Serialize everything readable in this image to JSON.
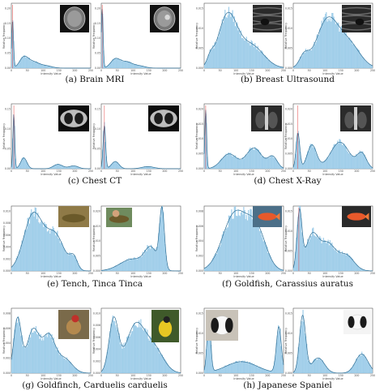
{
  "figure": {
    "panels": [
      {
        "caption": "(a) Brain MRI",
        "thumb_kind": "mri"
      },
      {
        "caption": "(b) Breast Ultrasound",
        "thumb_kind": "ultrasound"
      },
      {
        "caption": "(c) Chest CT",
        "thumb_kind": "ct"
      },
      {
        "caption": "(d) Chest X-Ray",
        "thumb_kind": "xray"
      },
      {
        "caption": "(e) Tench, Tinca Tinca",
        "thumb_kind": "tench"
      },
      {
        "caption": "(f) Goldfish, Carassius auratus",
        "thumb_kind": "goldfish"
      },
      {
        "caption": "(g) Goldfinch, Carduelis carduelis",
        "thumb_kind": "goldfinch"
      },
      {
        "caption": "(h) Japanese Spaniel",
        "thumb_kind": "spaniel"
      }
    ],
    "colors": {
      "bar_fill": "#a9d3ec",
      "bar_edge": "#6fb3dc",
      "kde_line": "#2f6f96",
      "mean_line": "#e3413f",
      "frame": "#555555"
    }
  },
  "chart_data": [
    {
      "type": "bar",
      "panel": "a-left",
      "ylabel": "Relative Frequency",
      "xlabel": "Intensity Value",
      "x_ticks": [
        "0",
        "50",
        "100",
        "150",
        "200",
        "250"
      ],
      "y_ticks": [
        "0.00",
        "0.05",
        "0.10",
        "0.15",
        "0.20"
      ],
      "xlim": [
        0,
        255
      ],
      "ylim": [
        0,
        0.22
      ],
      "peaks": [
        [
          4,
          0.16,
          3
        ],
        [
          40,
          0.035,
          14
        ],
        [
          70,
          0.02,
          18
        ],
        [
          110,
          0.008,
          20
        ]
      ],
      "mean": 4
    },
    {
      "type": "bar",
      "panel": "a-right",
      "ylabel": "Relative Frequency",
      "xlabel": "Intensity Value",
      "x_ticks": [
        "0",
        "50",
        "100",
        "150",
        "200",
        "250"
      ],
      "y_ticks": [
        "0.00",
        "0.05",
        "0.10",
        "0.15",
        "0.20"
      ],
      "xlim": [
        0,
        255
      ],
      "ylim": [
        0,
        0.22
      ],
      "peaks": [
        [
          3,
          0.2,
          3
        ],
        [
          45,
          0.03,
          15
        ],
        [
          80,
          0.02,
          18
        ],
        [
          120,
          0.008,
          20
        ]
      ],
      "mean": 3
    },
    {
      "type": "bar",
      "panel": "b-left",
      "ylabel": "Relative Frequency",
      "xlabel": "Intensity Value",
      "x_ticks": [
        "0",
        "50",
        "100",
        "150",
        "200",
        "250"
      ],
      "y_ticks": [
        "0.000",
        "0.005",
        "0.010",
        "0.015"
      ],
      "xlim": [
        0,
        255
      ],
      "ylim": [
        0,
        0.017
      ],
      "peaks": [
        [
          75,
          0.0135,
          30
        ],
        [
          150,
          0.006,
          40
        ],
        [
          20,
          0.002,
          10
        ]
      ],
      "mean": 0
    },
    {
      "type": "bar",
      "panel": "b-right",
      "ylabel": "Relative Frequency",
      "xlabel": "Intensity Value",
      "x_ticks": [
        "0",
        "50",
        "100",
        "150",
        "200",
        "250"
      ],
      "y_ticks": [
        "0.000",
        "0.005",
        "0.010",
        "0.015"
      ],
      "xlim": [
        0,
        255
      ],
      "ylim": [
        0,
        0.017
      ],
      "peaks": [
        [
          110,
          0.0125,
          35
        ],
        [
          180,
          0.006,
          35
        ],
        [
          35,
          0.003,
          15
        ]
      ],
      "mean": 0
    },
    {
      "type": "bar",
      "panel": "c-left",
      "ylabel": "Relative Frequency",
      "xlabel": "Intensity Value",
      "x_ticks": [
        "0",
        "50",
        "100",
        "150",
        "200",
        "250"
      ],
      "y_ticks": [
        "0.00",
        "0.05",
        "0.10",
        "0.15"
      ],
      "xlim": [
        0,
        255
      ],
      "ylim": [
        0,
        0.18
      ],
      "peaks": [
        [
          8,
          0.15,
          3
        ],
        [
          40,
          0.03,
          10
        ],
        [
          150,
          0.012,
          15
        ],
        [
          200,
          0.008,
          15
        ]
      ],
      "mean": 8
    },
    {
      "type": "bar",
      "panel": "c-right",
      "ylabel": "Relative Frequency",
      "xlabel": "Intensity Value",
      "x_ticks": [
        "0",
        "50",
        "100",
        "150",
        "200",
        "250"
      ],
      "y_ticks": [
        "0.00",
        "0.05",
        "0.10",
        "0.15"
      ],
      "xlim": [
        0,
        255
      ],
      "ylim": [
        0,
        0.18
      ],
      "peaks": [
        [
          10,
          0.12,
          4
        ],
        [
          45,
          0.02,
          12
        ],
        [
          150,
          0.006,
          20
        ]
      ],
      "mean": 10
    },
    {
      "type": "bar",
      "panel": "d-left",
      "ylabel": "Relative Frequency",
      "xlabel": "Intensity Value",
      "x_ticks": [
        "0",
        "50",
        "100",
        "150",
        "200",
        "250"
      ],
      "y_ticks": [
        "0.000",
        "0.005",
        "0.010",
        "0.015",
        "0.020"
      ],
      "xlim": [
        0,
        255
      ],
      "ylim": [
        0,
        0.022
      ],
      "peaks": [
        [
          5,
          0.02,
          3
        ],
        [
          80,
          0.005,
          25
        ],
        [
          160,
          0.007,
          25
        ],
        [
          220,
          0.004,
          15
        ]
      ],
      "mean": 5
    },
    {
      "type": "bar",
      "panel": "d-right",
      "ylabel": "Relative Frequency",
      "xlabel": "Intensity Value",
      "x_ticks": [
        "0",
        "50",
        "100",
        "150",
        "200",
        "250"
      ],
      "y_ticks": [
        "0.000",
        "0.005",
        "0.010",
        "0.015",
        "0.020"
      ],
      "xlim": [
        0,
        255
      ],
      "ylim": [
        0,
        0.022
      ],
      "peaks": [
        [
          15,
          0.012,
          6
        ],
        [
          60,
          0.008,
          15
        ],
        [
          150,
          0.009,
          30
        ],
        [
          220,
          0.005,
          15
        ]
      ],
      "mean": 15
    },
    {
      "type": "bar",
      "panel": "e-left",
      "ylabel": "Relative Frequency",
      "xlabel": "Intensity Value",
      "x_ticks": [
        "0",
        "50",
        "100",
        "150",
        "200",
        "250"
      ],
      "y_ticks": [
        "0.000",
        "0.002",
        "0.004",
        "0.006",
        "0.008",
        "0.010"
      ],
      "xlim": [
        0,
        255
      ],
      "ylim": [
        0,
        0.011
      ],
      "peaks": [
        [
          70,
          0.0095,
          30
        ],
        [
          140,
          0.006,
          30
        ],
        [
          200,
          0.002,
          12
        ]
      ],
      "mean": 0
    },
    {
      "type": "bar",
      "panel": "e-right",
      "ylabel": "Relative Frequency",
      "xlabel": "Intensity Value",
      "x_ticks": [
        "0",
        "50",
        "100",
        "150",
        "200",
        "250"
      ],
      "y_ticks": [
        "0.000",
        "0.005",
        "0.010",
        "0.015",
        "0.020"
      ],
      "xlim": [
        0,
        255
      ],
      "ylim": [
        0,
        0.022
      ],
      "peaks": [
        [
          195,
          0.02,
          8
        ],
        [
          160,
          0.007,
          20
        ],
        [
          100,
          0.004,
          40
        ]
      ],
      "mean": 0
    },
    {
      "type": "bar",
      "panel": "f-left",
      "ylabel": "Relative Frequency",
      "xlabel": "Intensity Value",
      "x_ticks": [
        "0",
        "50",
        "100",
        "150",
        "200",
        "250"
      ],
      "y_ticks": [
        "0.000",
        "0.002",
        "0.004",
        "0.006",
        "0.008"
      ],
      "xlim": [
        0,
        255
      ],
      "ylim": [
        0,
        0.009
      ],
      "peaks": [
        [
          100,
          0.008,
          40
        ],
        [
          170,
          0.005,
          30
        ]
      ],
      "mean": 0
    },
    {
      "type": "bar",
      "panel": "f-right",
      "ylabel": "Relative Frequency",
      "xlabel": "Intensity Value",
      "x_ticks": [
        "0",
        "50",
        "100",
        "150",
        "200",
        "250"
      ],
      "y_ticks": [
        "0.000",
        "0.005",
        "0.010",
        "0.015"
      ],
      "xlim": [
        0,
        255
      ],
      "ylim": [
        0,
        0.017
      ],
      "peaks": [
        [
          20,
          0.015,
          8
        ],
        [
          60,
          0.009,
          20
        ],
        [
          110,
          0.007,
          25
        ],
        [
          170,
          0.004,
          25
        ]
      ],
      "mean": 18
    },
    {
      "type": "bar",
      "panel": "g-left",
      "ylabel": "Relative Frequency",
      "xlabel": "Intensity Value",
      "x_ticks": [
        "0",
        "50",
        "100",
        "150",
        "200",
        "250"
      ],
      "y_ticks": [
        "0.000",
        "0.002",
        "0.004",
        "0.006",
        "0.008"
      ],
      "xlim": [
        0,
        255
      ],
      "ylim": [
        0,
        0.009
      ],
      "peaks": [
        [
          20,
          0.0075,
          12
        ],
        [
          70,
          0.006,
          20
        ],
        [
          120,
          0.005,
          20
        ],
        [
          170,
          0.002,
          25
        ]
      ],
      "mean": 0
    },
    {
      "type": "bar",
      "panel": "g-right",
      "ylabel": "Relative Frequency",
      "xlabel": "Intensity Value",
      "x_ticks": [
        "0",
        "50",
        "100",
        "150",
        "200",
        "250"
      ],
      "y_ticks": [
        "0.000",
        "0.002",
        "0.004",
        "0.006",
        "0.008",
        "0.010"
      ],
      "xlim": [
        0,
        255
      ],
      "ylim": [
        0,
        0.011
      ],
      "peaks": [
        [
          40,
          0.009,
          15
        ],
        [
          110,
          0.008,
          30
        ],
        [
          170,
          0.004,
          30
        ]
      ],
      "mean": 0
    },
    {
      "type": "bar",
      "panel": "h-left",
      "ylabel": "Relative Frequency",
      "xlabel": "Intensity Value",
      "x_ticks": [
        "0",
        "50",
        "100",
        "150",
        "200",
        "250"
      ],
      "y_ticks": [
        "0.000",
        "0.005",
        "0.010",
        "0.015"
      ],
      "xlim": [
        0,
        255
      ],
      "ylim": [
        0,
        0.017
      ],
      "peaks": [
        [
          15,
          0.014,
          6
        ],
        [
          240,
          0.012,
          8
        ],
        [
          120,
          0.003,
          50
        ]
      ],
      "mean": 0
    },
    {
      "type": "bar",
      "panel": "h-right",
      "ylabel": "Relative Frequency",
      "xlabel": "Intensity Value",
      "x_ticks": [
        "0",
        "50",
        "100",
        "150",
        "200",
        "250"
      ],
      "y_ticks": [
        "0.000",
        "0.005",
        "0.010",
        "0.015"
      ],
      "xlim": [
        0,
        255
      ],
      "ylim": [
        0,
        0.017
      ],
      "peaks": [
        [
          30,
          0.015,
          10
        ],
        [
          80,
          0.004,
          20
        ],
        [
          220,
          0.005,
          20
        ]
      ],
      "mean": 0
    }
  ]
}
